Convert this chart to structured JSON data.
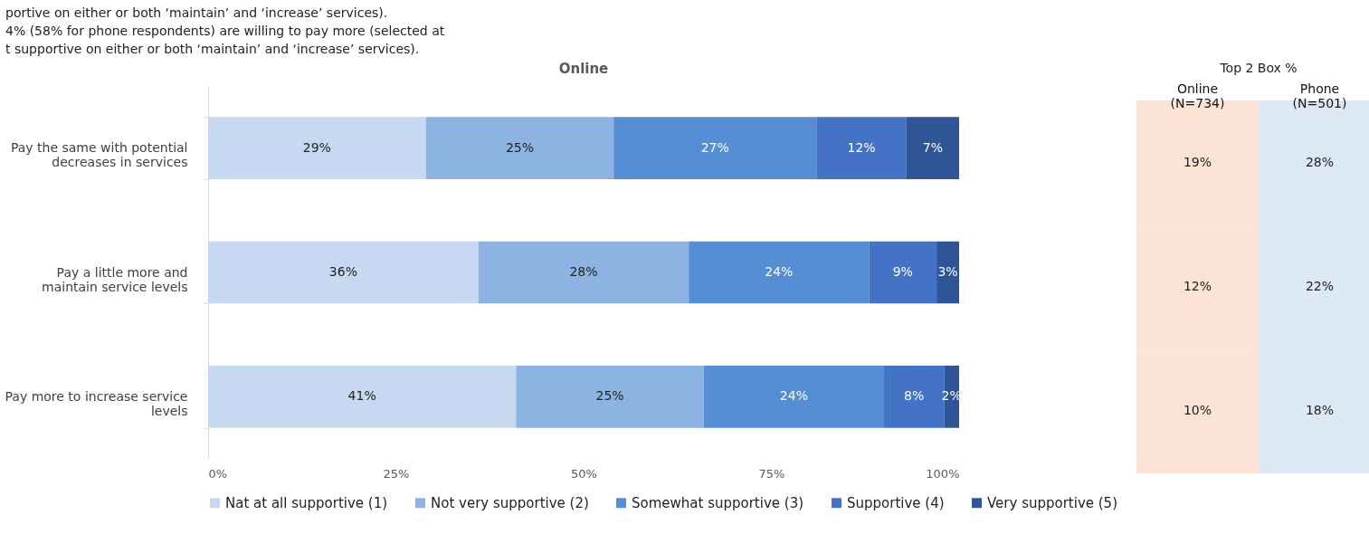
{
  "chart_data": [
    {
      "type": "bar",
      "orientation": "horizontal",
      "stacked": true,
      "title": "Online",
      "categories": [
        "Pay the same with potential decreases in services",
        "Pay a little more and maintain service levels",
        "Pay more to increase service levels"
      ],
      "series": [
        {
          "name": "Nat at all supportive (1)",
          "color": "#c6d9f0",
          "values": [
            29,
            36,
            41
          ],
          "value_labels": [
            "29%",
            "36%",
            "41%"
          ]
        },
        {
          "name": "Not very supportive (2)",
          "color": "#8db3e2",
          "values": [
            25,
            28,
            25
          ],
          "value_labels": [
            "25%",
            "28%",
            "25%"
          ]
        },
        {
          "name": "Somewhat supportive (3)",
          "color": "#558ed5",
          "values": [
            27,
            24,
            24
          ],
          "value_labels": [
            "27%",
            "24%",
            "24%"
          ]
        },
        {
          "name": "Supportive (4)",
          "color": "#4472c4",
          "values": [
            12,
            9,
            8
          ],
          "value_labels": [
            "12%",
            "9%",
            "8%"
          ]
        },
        {
          "name": "Very supportive (5)",
          "color": "#2f5597",
          "values": [
            7,
            3,
            2
          ],
          "value_labels": [
            "7%",
            "3%",
            "2%"
          ]
        }
      ],
      "xlim": [
        0,
        100
      ],
      "xticks": [
        {
          "value": 0,
          "label": "0%"
        },
        {
          "value": 25,
          "label": "25%"
        },
        {
          "value": 50,
          "label": "50%"
        },
        {
          "value": 75,
          "label": "75%"
        },
        {
          "value": 100,
          "label": "100%"
        }
      ],
      "legend": "bottom",
      "grid": false,
      "annotations": [
        "portive on either or both ‘maintain’ and ‘increase’ services).",
        "4% (58% for phone respondents) are willing to pay more (selected at",
        "t supportive on either or both ‘maintain’ and ‘increase’ services)."
      ]
    },
    {
      "type": "heatmap",
      "title": "Top 2 Box %",
      "categories": [
        "Online (N=734)",
        "Phone (N=501)"
      ],
      "y_categories": [
        null,
        null,
        null
      ],
      "colors": [
        "#fbe4d6",
        "#dde8f5"
      ],
      "cells": [
        [
          19,
          28
        ],
        [
          12,
          22
        ],
        [
          10,
          18
        ]
      ],
      "cell_labels": [
        [
          "19%",
          "28%"
        ],
        [
          "12%",
          "22%"
        ],
        [
          "10%",
          "18%"
        ]
      ]
    }
  ]
}
